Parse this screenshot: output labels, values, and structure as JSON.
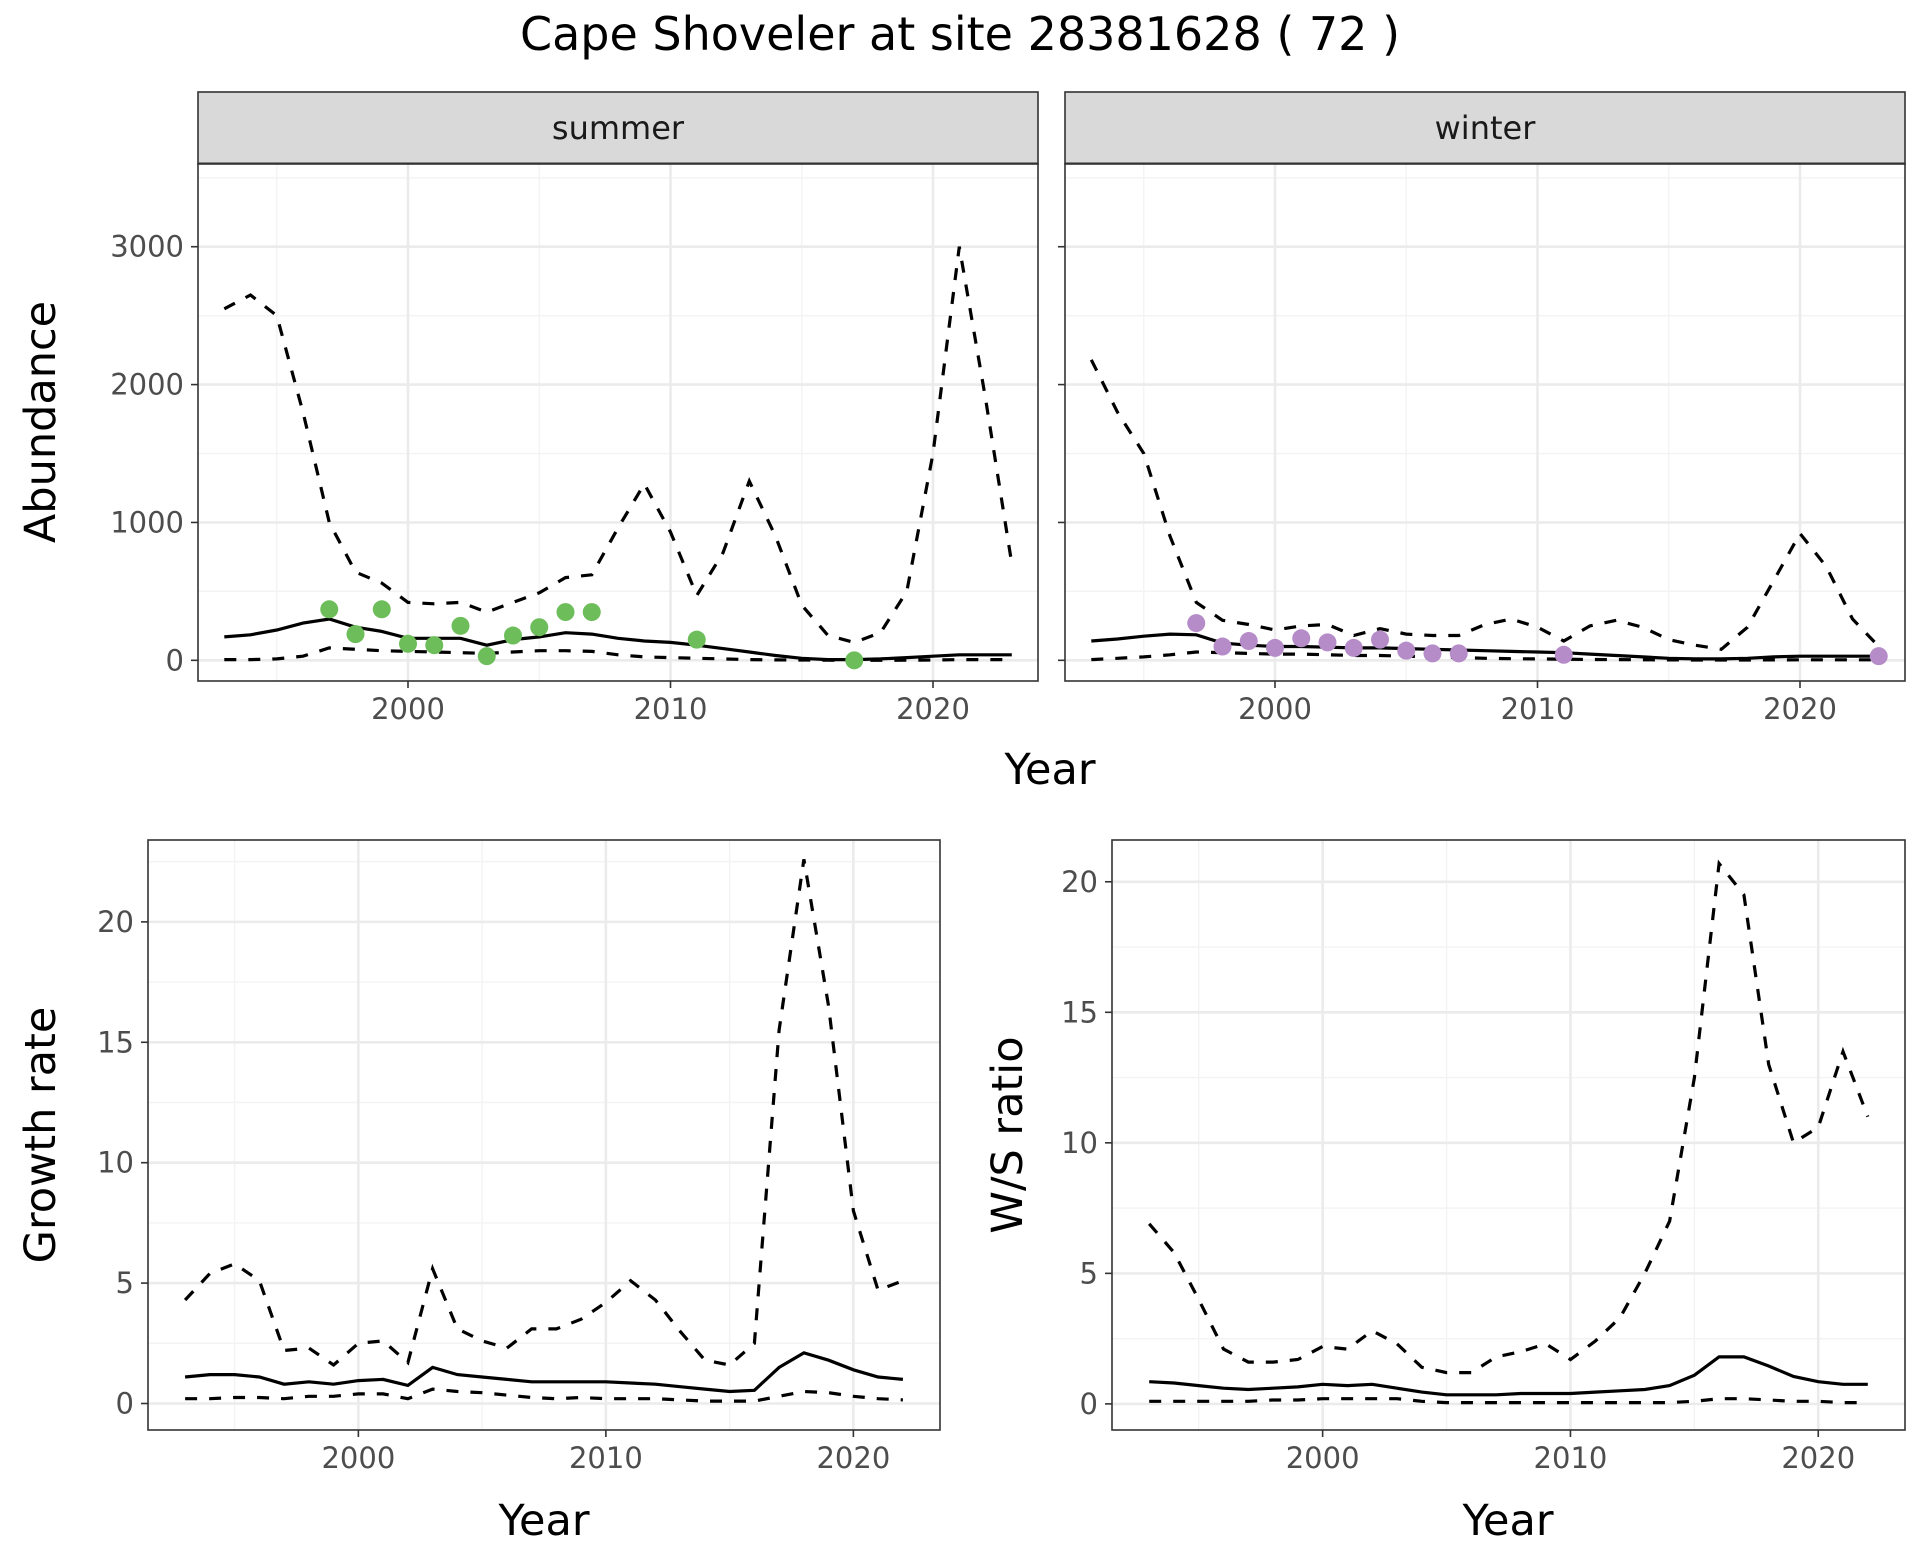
{
  "title": "Cape Shoveler at site 28381628 ( 72 )",
  "chart_data": [
    {
      "type": "line",
      "facet": "summer",
      "xlabel": "Year",
      "ylabel": "Abundance",
      "xlim": [
        1992,
        2024
      ],
      "ylim": [
        -150,
        3600
      ],
      "xticks": [
        2000,
        2010,
        2020
      ],
      "yticks": [
        0,
        1000,
        2000,
        3000
      ],
      "x": [
        1993,
        1994,
        1995,
        1996,
        1997,
        1998,
        1999,
        2000,
        2001,
        2002,
        2003,
        2004,
        2005,
        2006,
        2007,
        2008,
        2009,
        2010,
        2011,
        2012,
        2013,
        2014,
        2015,
        2016,
        2017,
        2018,
        2019,
        2020,
        2021,
        2022,
        2023
      ],
      "series": [
        {
          "role": "mean",
          "values": [
            170,
            185,
            220,
            270,
            300,
            240,
            210,
            160,
            160,
            160,
            110,
            150,
            170,
            200,
            190,
            160,
            140,
            130,
            110,
            85,
            60,
            35,
            15,
            5,
            5,
            10,
            20,
            30,
            40,
            40,
            40
          ]
        },
        {
          "role": "upper",
          "values": [
            2550,
            2650,
            2500,
            1800,
            1000,
            640,
            560,
            420,
            410,
            420,
            350,
            420,
            490,
            600,
            620,
            960,
            1280,
            930,
            470,
            780,
            1300,
            900,
            400,
            180,
            130,
            200,
            500,
            1500,
            3000,
            1900,
            700
          ]
        },
        {
          "role": "lower",
          "values": [
            5,
            5,
            10,
            30,
            90,
            80,
            70,
            65,
            60,
            55,
            50,
            60,
            70,
            70,
            65,
            40,
            25,
            20,
            15,
            10,
            5,
            3,
            2,
            1,
            0,
            0,
            1,
            2,
            5,
            5,
            5
          ]
        }
      ],
      "points": {
        "color": "#6dbe5a",
        "x": [
          1997,
          1998,
          1999,
          2000,
          2001,
          2002,
          2003,
          2004,
          2005,
          2006,
          2007,
          2011,
          2017
        ],
        "y": [
          370,
          190,
          370,
          120,
          110,
          250,
          30,
          180,
          240,
          350,
          350,
          150,
          0
        ]
      }
    },
    {
      "type": "line",
      "facet": "winter",
      "xlabel": "Year",
      "ylabel": "Abundance",
      "xlim": [
        1992,
        2024
      ],
      "ylim": [
        -150,
        3600
      ],
      "xticks": [
        2000,
        2010,
        2020
      ],
      "yticks": [
        0,
        1000,
        2000,
        3000
      ],
      "x": [
        1993,
        1994,
        1995,
        1996,
        1997,
        1998,
        1999,
        2000,
        2001,
        2002,
        2003,
        2004,
        2005,
        2006,
        2007,
        2008,
        2009,
        2010,
        2011,
        2012,
        2013,
        2014,
        2015,
        2016,
        2017,
        2018,
        2019,
        2020,
        2021,
        2022,
        2023
      ],
      "series": [
        {
          "role": "mean",
          "values": [
            140,
            155,
            175,
            190,
            185,
            125,
            110,
            100,
            100,
            95,
            90,
            90,
            85,
            80,
            75,
            70,
            65,
            60,
            55,
            45,
            35,
            25,
            15,
            10,
            10,
            15,
            25,
            30,
            30,
            30,
            30
          ]
        },
        {
          "role": "upper",
          "values": [
            2180,
            1800,
            1500,
            900,
            420,
            290,
            260,
            220,
            250,
            260,
            180,
            230,
            190,
            180,
            180,
            260,
            300,
            240,
            140,
            250,
            290,
            240,
            150,
            110,
            80,
            240,
            580,
            920,
            680,
            300,
            100
          ]
        },
        {
          "role": "lower",
          "values": [
            5,
            15,
            25,
            40,
            60,
            55,
            50,
            45,
            45,
            40,
            35,
            35,
            30,
            25,
            20,
            15,
            12,
            10,
            8,
            6,
            5,
            4,
            3,
            2,
            2,
            2,
            3,
            4,
            4,
            4,
            4
          ]
        }
      ],
      "points": {
        "color": "#b58cc8",
        "x": [
          1997,
          1998,
          1999,
          2000,
          2001,
          2002,
          2003,
          2004,
          2005,
          2006,
          2007,
          2011,
          2023
        ],
        "y": [
          270,
          100,
          140,
          90,
          160,
          130,
          90,
          150,
          70,
          50,
          50,
          40,
          30
        ]
      }
    },
    {
      "type": "line",
      "facet": "",
      "xlabel": "Year",
      "ylabel": "Growth rate",
      "xlim": [
        1991.5,
        2023.5
      ],
      "ylim": [
        -1.1,
        23.4
      ],
      "xticks": [
        2000,
        2010,
        2020
      ],
      "yticks": [
        0,
        5,
        10,
        15,
        20
      ],
      "x": [
        1993,
        1994,
        1995,
        1996,
        1997,
        1998,
        1999,
        2000,
        2001,
        2002,
        2003,
        2004,
        2005,
        2006,
        2007,
        2008,
        2009,
        2010,
        2011,
        2012,
        2013,
        2014,
        2015,
        2016,
        2017,
        2018,
        2019,
        2020,
        2021,
        2022
      ],
      "series": [
        {
          "role": "mean",
          "values": [
            1.1,
            1.2,
            1.2,
            1.1,
            0.8,
            0.9,
            0.8,
            0.95,
            1.0,
            0.75,
            1.5,
            1.2,
            1.1,
            1.0,
            0.9,
            0.9,
            0.9,
            0.9,
            0.85,
            0.8,
            0.7,
            0.6,
            0.5,
            0.55,
            1.5,
            2.1,
            1.8,
            1.4,
            1.1,
            1.0
          ]
        },
        {
          "role": "upper",
          "values": [
            4.3,
            5.4,
            5.8,
            5.1,
            2.2,
            2.3,
            1.6,
            2.5,
            2.6,
            1.7,
            5.6,
            3.1,
            2.6,
            2.3,
            3.1,
            3.1,
            3.5,
            4.2,
            5.1,
            4.3,
            3.0,
            1.8,
            1.6,
            2.5,
            15.5,
            22.6,
            16.5,
            8.0,
            4.7,
            5.1
          ]
        },
        {
          "role": "lower",
          "values": [
            0.2,
            0.2,
            0.25,
            0.25,
            0.2,
            0.3,
            0.3,
            0.4,
            0.4,
            0.2,
            0.6,
            0.5,
            0.45,
            0.35,
            0.25,
            0.2,
            0.25,
            0.2,
            0.2,
            0.2,
            0.15,
            0.1,
            0.1,
            0.1,
            0.3,
            0.5,
            0.45,
            0.3,
            0.2,
            0.15
          ]
        }
      ]
    },
    {
      "type": "line",
      "facet": "",
      "xlabel": "Year",
      "ylabel": "W/S ratio",
      "xlim": [
        1991.5,
        2023.5
      ],
      "ylim": [
        -1.0,
        21.6
      ],
      "xticks": [
        2000,
        2010,
        2020
      ],
      "yticks": [
        0,
        5,
        10,
        15,
        20
      ],
      "x": [
        1993,
        1994,
        1995,
        1996,
        1997,
        1998,
        1999,
        2000,
        2001,
        2002,
        2003,
        2004,
        2005,
        2006,
        2007,
        2008,
        2009,
        2010,
        2011,
        2012,
        2013,
        2014,
        2015,
        2016,
        2017,
        2018,
        2019,
        2020,
        2021,
        2022
      ],
      "series": [
        {
          "role": "mean",
          "values": [
            0.85,
            0.8,
            0.7,
            0.6,
            0.55,
            0.6,
            0.65,
            0.75,
            0.7,
            0.75,
            0.6,
            0.45,
            0.35,
            0.35,
            0.35,
            0.4,
            0.4,
            0.4,
            0.45,
            0.5,
            0.55,
            0.7,
            1.1,
            1.8,
            1.8,
            1.45,
            1.05,
            0.85,
            0.75,
            0.75
          ]
        },
        {
          "role": "upper",
          "values": [
            6.9,
            5.8,
            4.0,
            2.1,
            1.6,
            1.6,
            1.7,
            2.2,
            2.1,
            2.8,
            2.3,
            1.4,
            1.2,
            1.2,
            1.8,
            2.0,
            2.3,
            1.7,
            2.4,
            3.3,
            5.0,
            7.0,
            12.5,
            20.7,
            19.5,
            13.0,
            10.0,
            10.6,
            13.5,
            11.0
          ]
        },
        {
          "role": "lower",
          "values": [
            0.1,
            0.1,
            0.1,
            0.1,
            0.1,
            0.15,
            0.15,
            0.2,
            0.2,
            0.2,
            0.2,
            0.1,
            0.05,
            0.05,
            0.05,
            0.05,
            0.05,
            0.05,
            0.05,
            0.05,
            0.05,
            0.05,
            0.1,
            0.2,
            0.2,
            0.15,
            0.1,
            0.1,
            0.05,
            0.05
          ]
        }
      ]
    }
  ]
}
